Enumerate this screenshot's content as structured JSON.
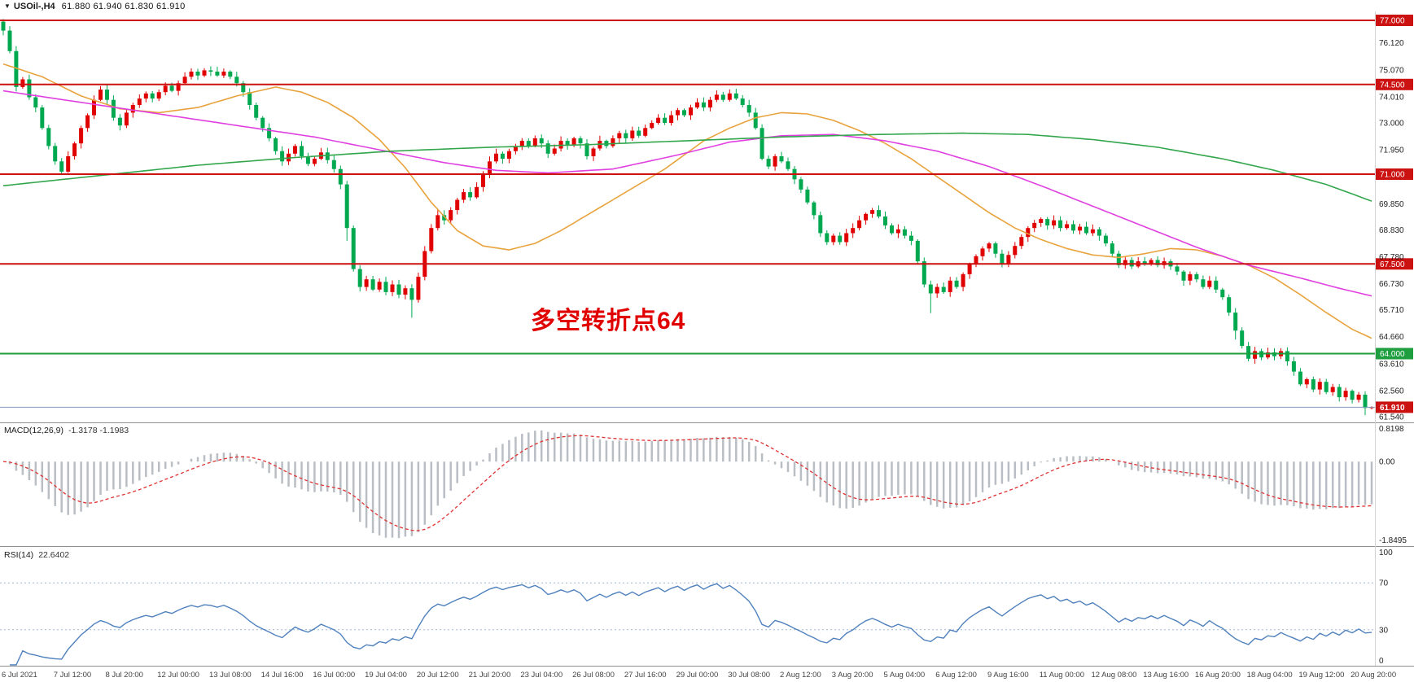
{
  "window": {
    "dropdown_icon": "▼",
    "title": "USOil-,H4",
    "ohlc": "61.880 61.940 61.830 61.910"
  },
  "annotation": {
    "text": "多空转折点64",
    "color": "#e00000"
  },
  "macd_panel": {
    "label": "MACD(12,26,9)",
    "values": "-1.3178 -1.1983",
    "ticks": [
      "0.8198",
      "0.00",
      "-1.8495"
    ]
  },
  "rsi_panel": {
    "label": "RSI(14)",
    "value": "22.6402",
    "ticks": [
      "100",
      "70",
      "30",
      "0"
    ]
  },
  "price_axis": {
    "ticks": [
      {
        "label": "76.120",
        "price": 76.12
      },
      {
        "label": "75.070",
        "price": 75.07
      },
      {
        "label": "74.010",
        "price": 74.01
      },
      {
        "label": "73.000",
        "price": 73.0
      },
      {
        "label": "71.950",
        "price": 71.95
      },
      {
        "label": "69.850",
        "price": 69.85
      },
      {
        "label": "68.830",
        "price": 68.83
      },
      {
        "label": "67.780",
        "price": 67.78
      },
      {
        "label": "66.730",
        "price": 66.73
      },
      {
        "label": "65.710",
        "price": 65.71
      },
      {
        "label": "64.660",
        "price": 64.66
      },
      {
        "label": "63.610",
        "price": 63.61
      },
      {
        "label": "62.560",
        "price": 62.56
      },
      {
        "label": "61.540",
        "price": 61.54
      }
    ]
  },
  "time_axis": [
    "6 Jul 2021",
    "7 Jul 12:00",
    "8 Jul 20:00",
    "12 Jul 00:00",
    "13 Jul 08:00",
    "14 Jul 16:00",
    "16 Jul 00:00",
    "19 Jul 04:00",
    "20 Jul 12:00",
    "21 Jul 20:00",
    "23 Jul 04:00",
    "26 Jul 08:00",
    "27 Jul 16:00",
    "29 Jul 00:00",
    "30 Jul 08:00",
    "2 Aug 12:00",
    "3 Aug 20:00",
    "5 Aug 04:00",
    "6 Aug 12:00",
    "9 Aug 16:00",
    "11 Aug 00:00",
    "12 Aug 08:00",
    "13 Aug 16:00",
    "16 Aug 20:00",
    "18 Aug 04:00",
    "19 Aug 12:00",
    "20 Aug 20:00"
  ],
  "colors": {
    "candle_up": "#e00000",
    "candle_down": "#00a94f",
    "resistance_line": "#cc1111",
    "pivot_line": "#1e9e3e",
    "current_price_line": "#7f9db9",
    "current_price_badge": "#cc1111",
    "macd_histogram": "#b9bec4",
    "macd_signal": "#e03131",
    "rsi_line": "#4f81bd",
    "rsi_levels": "#9db8d2",
    "axis_text": "#222222",
    "time_text": "#444444"
  },
  "chart_data": {
    "type": "candlestick",
    "symbol": "USOil-",
    "timeframe": "H4",
    "title": "USOil-,H4 61.880 61.940 61.830 61.910",
    "scale": {
      "p_min": 61.35,
      "p_max": 77.35
    },
    "first_open": 76.95,
    "closes": [
      76.6,
      75.8,
      74.4,
      74.7,
      74.0,
      73.6,
      72.8,
      72.1,
      71.5,
      71.1,
      71.7,
      72.2,
      72.8,
      73.3,
      73.9,
      74.3,
      73.9,
      73.2,
      72.9,
      73.4,
      73.7,
      73.95,
      74.15,
      73.95,
      74.2,
      74.45,
      74.25,
      74.55,
      74.8,
      75.0,
      74.85,
      75.05,
      75.0,
      74.85,
      75.0,
      74.8,
      74.55,
      74.2,
      73.7,
      73.2,
      72.8,
      72.4,
      71.9,
      71.5,
      71.8,
      72.1,
      71.7,
      71.4,
      71.6,
      71.85,
      71.55,
      71.2,
      70.6,
      68.9,
      67.3,
      66.6,
      66.9,
      66.5,
      66.8,
      66.4,
      66.7,
      66.3,
      66.55,
      66.1,
      67.0,
      68.0,
      68.9,
      69.4,
      69.2,
      69.6,
      70.0,
      70.3,
      70.1,
      70.5,
      71.0,
      71.5,
      71.8,
      71.6,
      71.9,
      72.1,
      72.3,
      72.1,
      72.4,
      72.2,
      71.8,
      72.0,
      72.3,
      72.15,
      72.4,
      72.2,
      71.7,
      72.0,
      72.3,
      72.1,
      72.4,
      72.6,
      72.4,
      72.7,
      72.5,
      72.8,
      73.0,
      73.2,
      73.0,
      73.3,
      73.5,
      73.3,
      73.6,
      73.8,
      73.6,
      73.9,
      74.1,
      73.9,
      74.15,
      73.95,
      73.7,
      73.4,
      72.8,
      71.6,
      71.3,
      71.7,
      71.5,
      71.2,
      70.8,
      70.4,
      69.9,
      69.4,
      68.7,
      68.35,
      68.6,
      68.35,
      68.7,
      68.9,
      69.2,
      69.45,
      69.6,
      69.35,
      69.0,
      68.7,
      68.85,
      68.6,
      68.4,
      67.6,
      66.7,
      66.35,
      66.6,
      66.4,
      66.85,
      66.6,
      67.1,
      67.5,
      67.8,
      68.1,
      68.3,
      67.9,
      67.5,
      67.85,
      68.2,
      68.55,
      68.9,
      69.1,
      69.25,
      69.0,
      69.2,
      68.9,
      69.05,
      68.8,
      68.95,
      68.7,
      68.85,
      68.6,
      68.3,
      67.9,
      67.45,
      67.65,
      67.4,
      67.6,
      67.5,
      67.65,
      67.45,
      67.6,
      67.4,
      67.2,
      66.85,
      67.1,
      66.9,
      66.6,
      66.85,
      66.5,
      66.2,
      65.6,
      64.9,
      64.3,
      63.8,
      64.1,
      63.85,
      64.05,
      63.9,
      64.1,
      63.7,
      63.3,
      62.8,
      63.0,
      62.6,
      62.9,
      62.5,
      62.7,
      62.3,
      62.55,
      62.2,
      62.4,
      61.88,
      61.91
    ],
    "special_wicks": {
      "0": {
        "h": 77.05
      },
      "53": {
        "l": 68.4
      },
      "63": {
        "l": 65.4
      },
      "143": {
        "l": 65.58
      },
      "190": {
        "l": 64.55
      },
      "210": {
        "l": 61.6
      },
      "211": {
        "h": 61.94,
        "l": 61.83
      }
    },
    "hlines": [
      {
        "price": 77.0,
        "label": "77.000",
        "color": "#cc1111"
      },
      {
        "price": 74.5,
        "label": "74.500",
        "color": "#cc1111"
      },
      {
        "price": 71.0,
        "label": "71.000",
        "color": "#cc1111"
      },
      {
        "price": 67.5,
        "label": "67.500",
        "color": "#cc1111"
      },
      {
        "price": 64.0,
        "label": "64.000",
        "color": "#1e9e3e"
      }
    ],
    "current_price": {
      "price": 61.91,
      "label": "61.910"
    },
    "moving_averages": [
      {
        "name": "ma-fast-orange",
        "color": "#e8a33d",
        "points": [
          [
            0,
            75.3
          ],
          [
            6,
            74.8
          ],
          [
            12,
            74.05
          ],
          [
            18,
            73.55
          ],
          [
            24,
            73.4
          ],
          [
            30,
            73.6
          ],
          [
            36,
            74.05
          ],
          [
            42,
            74.4
          ],
          [
            46,
            74.2
          ],
          [
            50,
            73.8
          ],
          [
            54,
            73.2
          ],
          [
            58,
            72.35
          ],
          [
            62,
            71.25
          ],
          [
            66,
            69.9
          ],
          [
            70,
            68.8
          ],
          [
            74,
            68.2
          ],
          [
            78,
            68.05
          ],
          [
            82,
            68.3
          ],
          [
            86,
            68.8
          ],
          [
            90,
            69.4
          ],
          [
            96,
            70.3
          ],
          [
            102,
            71.2
          ],
          [
            108,
            72.3
          ],
          [
            112,
            72.8
          ],
          [
            116,
            73.2
          ],
          [
            120,
            73.4
          ],
          [
            124,
            73.35
          ],
          [
            128,
            73.1
          ],
          [
            132,
            72.7
          ],
          [
            136,
            72.2
          ],
          [
            140,
            71.6
          ],
          [
            144,
            70.9
          ],
          [
            148,
            70.2
          ],
          [
            152,
            69.5
          ],
          [
            156,
            68.9
          ],
          [
            160,
            68.45
          ],
          [
            164,
            68.1
          ],
          [
            168,
            67.85
          ],
          [
            172,
            67.75
          ],
          [
            176,
            67.9
          ],
          [
            180,
            68.1
          ],
          [
            184,
            68.05
          ],
          [
            188,
            67.8
          ],
          [
            192,
            67.45
          ],
          [
            196,
            66.95
          ],
          [
            200,
            66.3
          ],
          [
            204,
            65.6
          ],
          [
            208,
            64.95
          ],
          [
            211,
            64.6
          ]
        ]
      },
      {
        "name": "ma-mid-magenta",
        "color": "#e040e0",
        "points": [
          [
            0,
            74.25
          ],
          [
            12,
            73.8
          ],
          [
            24,
            73.35
          ],
          [
            36,
            72.9
          ],
          [
            48,
            72.45
          ],
          [
            58,
            71.95
          ],
          [
            68,
            71.45
          ],
          [
            76,
            71.15
          ],
          [
            84,
            71.05
          ],
          [
            94,
            71.2
          ],
          [
            104,
            71.75
          ],
          [
            112,
            72.25
          ],
          [
            120,
            72.5
          ],
          [
            128,
            72.55
          ],
          [
            136,
            72.3
          ],
          [
            144,
            71.9
          ],
          [
            152,
            71.3
          ],
          [
            160,
            70.55
          ],
          [
            168,
            69.75
          ],
          [
            176,
            68.95
          ],
          [
            184,
            68.15
          ],
          [
            192,
            67.45
          ],
          [
            200,
            66.95
          ],
          [
            206,
            66.55
          ],
          [
            211,
            66.25
          ]
        ]
      },
      {
        "name": "ma-slow-green",
        "color": "#33a64c",
        "points": [
          [
            0,
            70.55
          ],
          [
            15,
            70.95
          ],
          [
            30,
            71.35
          ],
          [
            45,
            71.65
          ],
          [
            60,
            71.9
          ],
          [
            75,
            72.05
          ],
          [
            90,
            72.15
          ],
          [
            105,
            72.3
          ],
          [
            120,
            72.45
          ],
          [
            135,
            72.55
          ],
          [
            148,
            72.6
          ],
          [
            158,
            72.55
          ],
          [
            168,
            72.35
          ],
          [
            178,
            72.05
          ],
          [
            188,
            71.6
          ],
          [
            196,
            71.15
          ],
          [
            204,
            70.6
          ],
          [
            211,
            69.95
          ]
        ]
      }
    ],
    "macd": {
      "fast": 12,
      "slow": 26,
      "signal": 9,
      "main_value": -1.3178,
      "signal_value": -1.1983,
      "scale_labels": [
        0.8198,
        0.0,
        -1.8495
      ]
    },
    "rsi": {
      "period": 14,
      "value": 22.6402,
      "range": [
        0,
        100
      ],
      "levels": [
        70,
        30
      ]
    }
  }
}
